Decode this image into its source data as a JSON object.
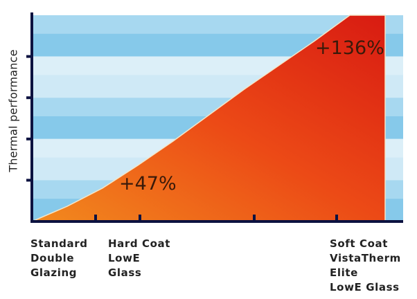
{
  "chart_data": {
    "type": "area",
    "title": "",
    "ylabel": "Thermal performance",
    "xlabel": "",
    "grid": true,
    "categories": [
      [
        "Standard",
        "Double",
        "Glazing"
      ],
      [
        "Hard Coat",
        "LowE",
        "Glass"
      ],
      [
        "Soft Coat",
        "VistaTherm",
        "Elite",
        "LowE Glass"
      ]
    ],
    "annotations": [
      "+47%",
      "+136%"
    ],
    "series": [
      {
        "x": [
          0,
          1,
          2,
          3,
          4,
          5,
          6,
          7,
          8,
          9,
          10
        ],
        "values": [
          0,
          10,
          22,
          37,
          53,
          70,
          87,
          103,
          119,
          136,
          136
        ]
      }
    ],
    "ylim": [
      0,
      136
    ],
    "colors": {
      "band_light": "#cfe9f6",
      "band_dark": "#86c9ea",
      "fill_bottom": "#f28a1e",
      "fill_mid": "#ec4a16",
      "fill_top": "#d81b12",
      "axis": "#0c1240"
    }
  }
}
